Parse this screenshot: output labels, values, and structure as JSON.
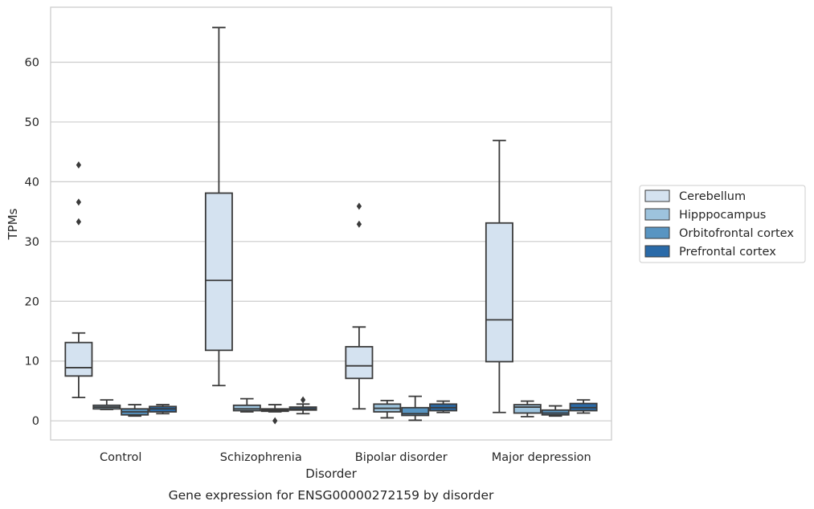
{
  "caption": "Gene expression for ENSG00000272159 by disorder",
  "chart_data": {
    "type": "box",
    "xlabel": "Disorder",
    "ylabel": "TPMs",
    "ylim": [
      -3.2,
      69.2
    ],
    "yticks": [
      0,
      10,
      20,
      30,
      40,
      50,
      60
    ],
    "grid": "horizontal",
    "legend_placement": "right",
    "categories": [
      "Control",
      "Schizophrenia",
      "Bipolar disorder",
      "Major depression"
    ],
    "series": [
      {
        "name": "Cerebellum",
        "color": "#d4e2f0",
        "boxes": [
          {
            "whisker_low": 3.9,
            "q1": 7.5,
            "median": 8.9,
            "q3": 13.1,
            "whisker_high": 14.7,
            "outliers": [
              33.3,
              36.6,
              42.8
            ]
          },
          {
            "whisker_low": 5.9,
            "q1": 11.8,
            "median": 23.5,
            "q3": 38.1,
            "whisker_high": 65.8,
            "outliers": []
          },
          {
            "whisker_low": 2.0,
            "q1": 7.1,
            "median": 9.2,
            "q3": 12.4,
            "whisker_high": 15.7,
            "outliers": [
              32.9,
              35.9
            ]
          },
          {
            "whisker_low": 1.4,
            "q1": 9.9,
            "median": 16.9,
            "q3": 33.1,
            "whisker_high": 46.9,
            "outliers": []
          }
        ]
      },
      {
        "name": "Hipppocampus",
        "color": "#9dc3dd",
        "boxes": [
          {
            "whisker_low": 1.9,
            "q1": 2.0,
            "median": 2.3,
            "q3": 2.6,
            "whisker_high": 3.5,
            "outliers": []
          },
          {
            "whisker_low": 1.5,
            "q1": 1.7,
            "median": 2.0,
            "q3": 2.6,
            "whisker_high": 3.7,
            "outliers": []
          },
          {
            "whisker_low": 0.5,
            "q1": 1.5,
            "median": 2.1,
            "q3": 2.8,
            "whisker_high": 3.4,
            "outliers": []
          },
          {
            "whisker_low": 0.7,
            "q1": 1.3,
            "median": 2.3,
            "q3": 2.7,
            "whisker_high": 3.3,
            "outliers": []
          }
        ]
      },
      {
        "name": "Orbitofrontal cortex",
        "color": "#5895c2",
        "boxes": [
          {
            "whisker_low": 0.8,
            "q1": 1.0,
            "median": 1.5,
            "q3": 2.0,
            "whisker_high": 2.7,
            "outliers": []
          },
          {
            "whisker_low": 1.5,
            "q1": 1.6,
            "median": 1.8,
            "q3": 2.0,
            "whisker_high": 2.7,
            "outliers": [
              0.0
            ]
          },
          {
            "whisker_low": 0.1,
            "q1": 0.9,
            "median": 1.2,
            "q3": 2.2,
            "whisker_high": 4.1,
            "outliers": []
          },
          {
            "whisker_low": 0.8,
            "q1": 1.0,
            "median": 1.3,
            "q3": 1.8,
            "whisker_high": 2.5,
            "outliers": []
          }
        ]
      },
      {
        "name": "Prefrontal cortex",
        "color": "#2a6aa8",
        "boxes": [
          {
            "whisker_low": 1.2,
            "q1": 1.5,
            "median": 2.0,
            "q3": 2.4,
            "whisker_high": 2.7,
            "outliers": []
          },
          {
            "whisker_low": 1.2,
            "q1": 1.8,
            "median": 2.0,
            "q3": 2.3,
            "whisker_high": 2.8,
            "outliers": [
              3.5
            ]
          },
          {
            "whisker_low": 1.4,
            "q1": 1.7,
            "median": 2.2,
            "q3": 2.8,
            "whisker_high": 3.3,
            "outliers": []
          },
          {
            "whisker_low": 1.3,
            "q1": 1.7,
            "median": 2.2,
            "q3": 2.9,
            "whisker_high": 3.5,
            "outliers": []
          }
        ]
      }
    ]
  }
}
